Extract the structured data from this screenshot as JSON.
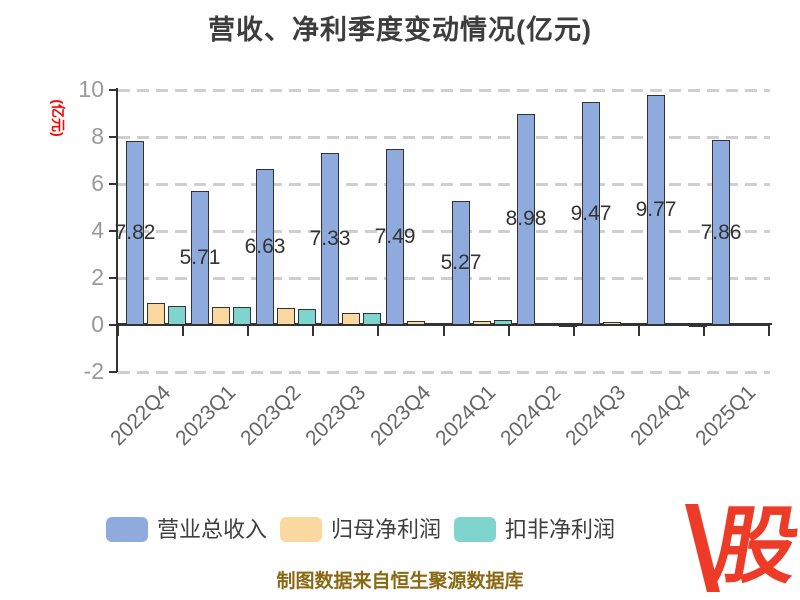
{
  "title": {
    "text": "营收、净利季度变动情况(亿元)"
  },
  "y_axis": {
    "unit_label": "(亿元)",
    "ticks": [
      10,
      8,
      6,
      4,
      2,
      0,
      -2
    ]
  },
  "chart_data": {
    "type": "bar",
    "title": "营收、净利季度变动情况(亿元)",
    "categories": [
      "2022Q4",
      "2023Q1",
      "2023Q2",
      "2023Q3",
      "2023Q4",
      "2024Q1",
      "2024Q2",
      "2024Q3",
      "2024Q4",
      "2025Q1"
    ],
    "series": [
      {
        "name": "营业总收入",
        "color": "#8FAADC",
        "values": [
          7.82,
          5.71,
          6.63,
          7.33,
          7.49,
          5.27,
          8.98,
          9.47,
          9.77,
          7.86
        ],
        "labels": [
          "7.82",
          "5.71",
          "6.63",
          "7.33",
          "7.49",
          "5.27",
          "8.98",
          "9.47",
          "9.77",
          "7.86"
        ]
      },
      {
        "name": "归母净利润",
        "color": "#FAD8A0",
        "values": [
          0.92,
          0.76,
          0.71,
          0.53,
          0.17,
          0.17,
          0.07,
          0.13,
          0.09,
          0.1
        ]
      },
      {
        "name": "扣非净利润",
        "color": "#7FD4CE",
        "values": [
          0.81,
          0.75,
          0.69,
          0.53,
          0.1,
          0.2,
          -0.04,
          0.1,
          -0.03,
          0.05
        ]
      }
    ],
    "ylabel": "(亿元)",
    "ylim": [
      -2,
      10
    ],
    "y_tick_step": 2,
    "grid": "dashed horizontal gridlines",
    "legend_position": "bottom"
  },
  "footer": {
    "text": "制图数据来自恒生聚源数据库"
  },
  "logo": {
    "text": "股"
  },
  "colors": {
    "title": "#3D3D3D",
    "unit_red": "#FF0000",
    "grid": "#CFCFCF",
    "axis": "#333333",
    "bar_border": "#333333",
    "y_tick_label": "#999999",
    "x_tick_label": "#666666",
    "value_label": "#333333",
    "legend_text": "#3F3F3F",
    "footer": "#8B6914",
    "logo_red": "#ED3B27",
    "series_blue": "#8FAADC",
    "series_orange": "#FAD8A0",
    "series_teal": "#7FD4CE"
  }
}
